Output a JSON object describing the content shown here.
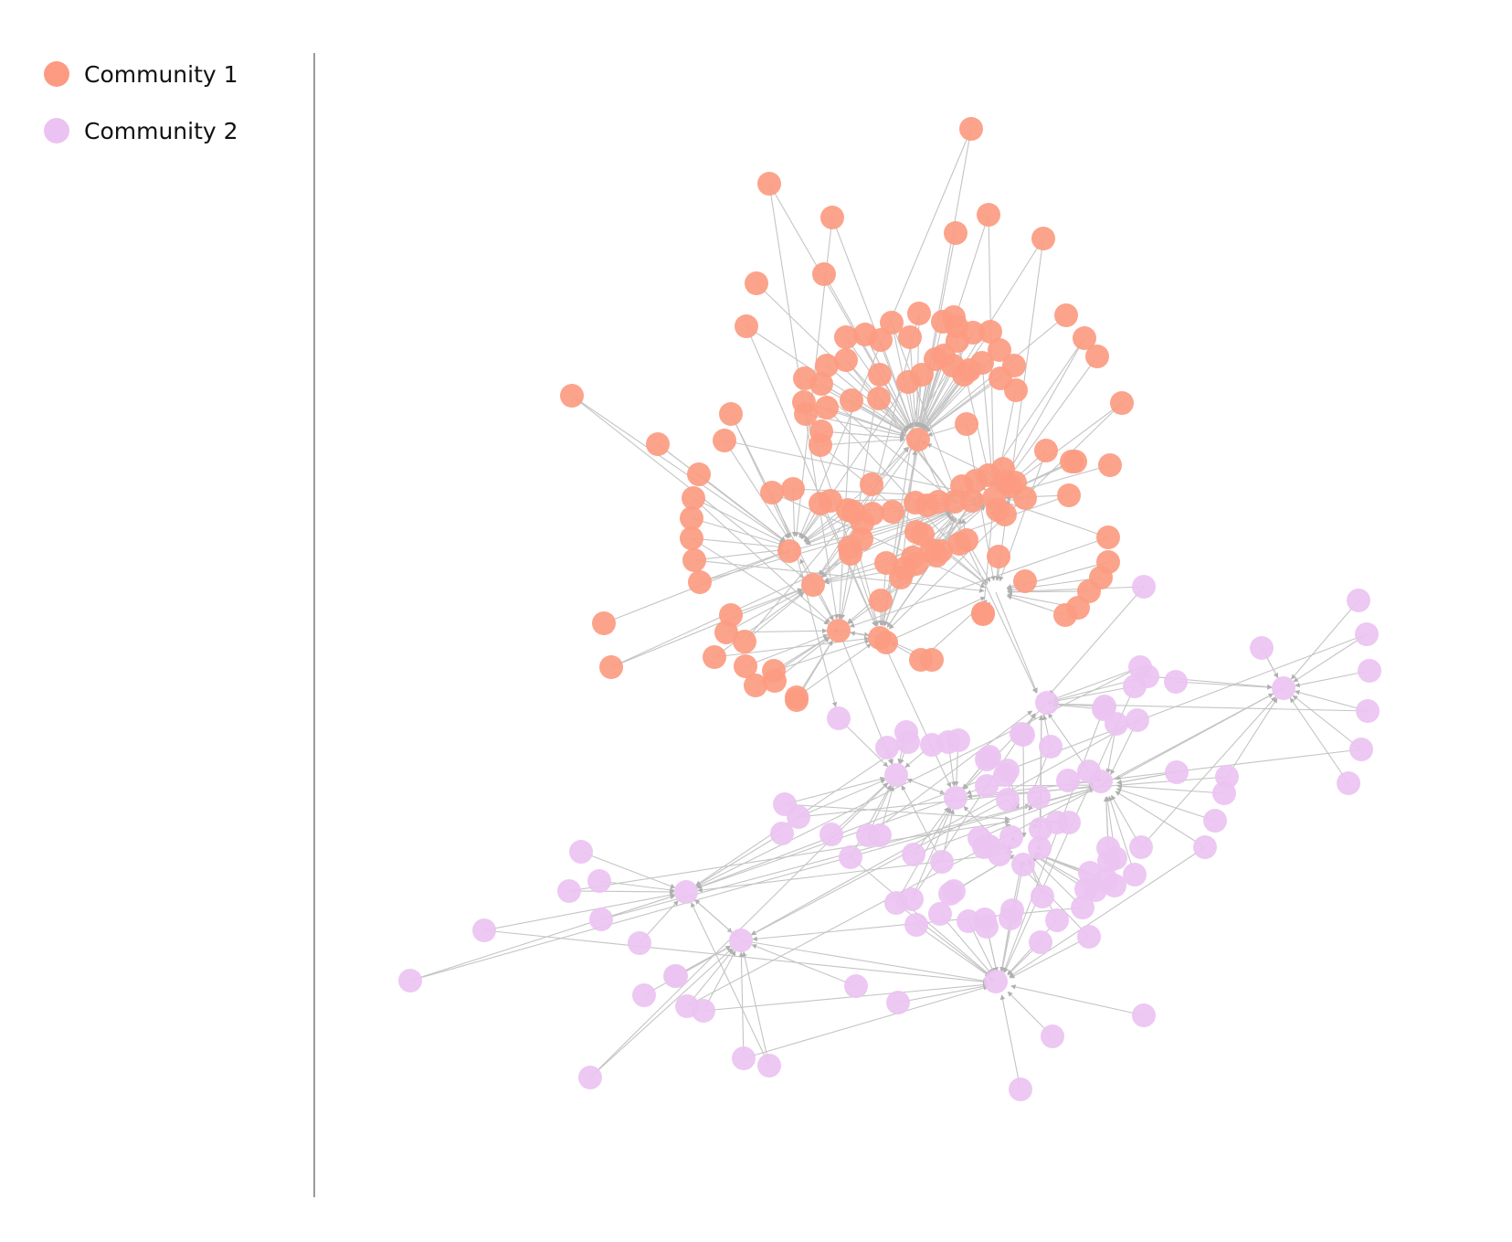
{
  "legend": {
    "items": [
      {
        "label": "Community 1",
        "color": "#fc9b81"
      },
      {
        "label": "Community 2",
        "color": "#ebc3f2"
      }
    ]
  },
  "graph": {
    "type": "network",
    "edge_color": "#c4c4c4",
    "communities": [
      {
        "id": 1,
        "color": "#fc9b81",
        "node_count": 130
      },
      {
        "id": 2,
        "color": "#ebc3f2",
        "node_count": 120
      }
    ]
  }
}
